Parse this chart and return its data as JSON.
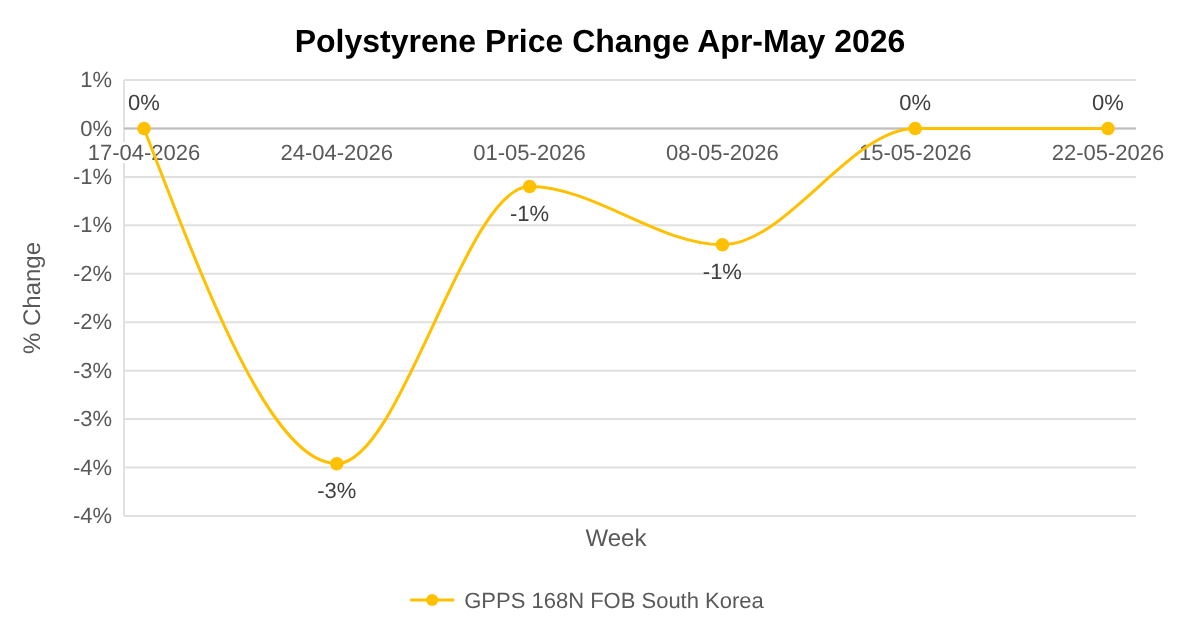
{
  "chart_data": {
    "type": "line",
    "title": "Polystyrene Price Change Apr-May 2026",
    "xlabel": "Week",
    "ylabel": "% Change",
    "categories": [
      "17-04-2026",
      "24-04-2026",
      "01-05-2026",
      "08-05-2026",
      "15-05-2026",
      "22-05-2026"
    ],
    "series": [
      {
        "name": "GPPS 168N FOB South Korea",
        "color": "#ffc000",
        "values": [
          0,
          -3.46,
          -0.6,
          -1.2,
          0,
          0
        ],
        "value_labels": [
          "0%",
          "-3%",
          "-1%",
          "-1%",
          "0%",
          "0%"
        ]
      }
    ],
    "ylim": [
      -4,
      0.5
    ],
    "yticks": [
      {
        "value": 0.5,
        "label": "1%"
      },
      {
        "value": 0,
        "label": "0%"
      },
      {
        "value": -0.5,
        "label": "-1%"
      },
      {
        "value": -1,
        "label": "-1%"
      },
      {
        "value": -1.5,
        "label": "-2%"
      },
      {
        "value": -2,
        "label": "-2%"
      },
      {
        "value": -2.5,
        "label": "-3%"
      },
      {
        "value": -3,
        "label": "-3%"
      },
      {
        "value": -3.5,
        "label": "-4%"
      },
      {
        "value": -4,
        "label": "-4%"
      }
    ],
    "grid": "y",
    "legend": "bottom",
    "marker": "circle",
    "line_style": "solid"
  }
}
